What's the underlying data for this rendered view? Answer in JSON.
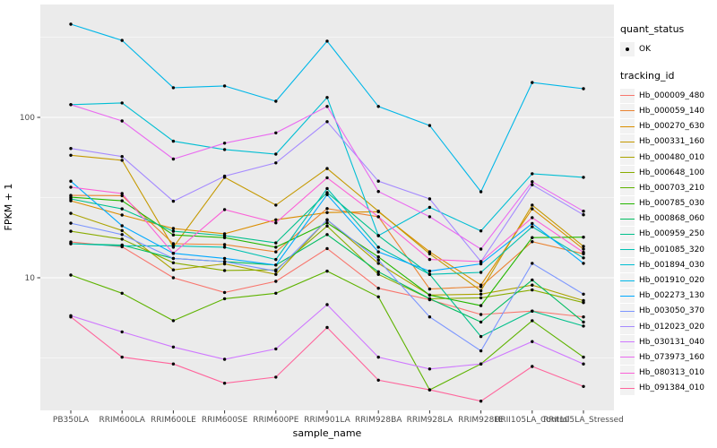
{
  "chart_data": {
    "type": "line",
    "title": "",
    "xlabel": "sample_name",
    "ylabel": "FPKM + 1",
    "yscale": "log10",
    "grid": true,
    "legend_position": "right",
    "panel_bg": "#EBEBEB",
    "grid_color": "#FFFFFF",
    "point_color": "#000000",
    "axis_text_color": "#4D4D4D",
    "yticks": [
      10,
      100
    ],
    "ytick_labels": [
      "10",
      "100"
    ],
    "minor_gridlines": [
      3.1623,
      31.623,
      316.23
    ],
    "categories": [
      "PB350LA",
      "RRIM600LA",
      "RRIM600LE",
      "RRIM600SE",
      "RRIM600PE",
      "RRIM901LA",
      "RRIM928BA",
      "RRIM928LA",
      "RRIM928LE",
      "RRII105LA_Control",
      "RRII105LA_Stressed"
    ],
    "series": [
      {
        "name": "Hb_000009_480",
        "color": "#F8766D",
        "values": [
          16.7,
          15.6,
          10.0,
          8.1,
          9.5,
          15.2,
          8.6,
          7.3,
          5.9,
          6.2,
          5.7
        ]
      },
      {
        "name": "Hb_000059_140",
        "color": "#EA8331",
        "values": [
          32.6,
          32.5,
          16.3,
          16.1,
          14.5,
          27.0,
          24.0,
          8.5,
          8.8,
          16.8,
          14.1
        ]
      },
      {
        "name": "Hb_000270_630",
        "color": "#DB8E00",
        "values": [
          30.2,
          24.6,
          20.3,
          18.8,
          23.0,
          25.5,
          25.8,
          14.5,
          9.0,
          26.9,
          15.1
        ]
      },
      {
        "name": "Hb_000331_160",
        "color": "#C59900",
        "values": [
          58.0,
          54.0,
          15.5,
          42.3,
          28.4,
          48.0,
          26.0,
          14.1,
          8.3,
          28.4,
          15.7
        ]
      },
      {
        "name": "Hb_000480_010",
        "color": "#ABA300",
        "values": [
          25.2,
          19.7,
          11.2,
          12.2,
          10.5,
          23.0,
          12.3,
          7.8,
          7.9,
          9.0,
          7.2
        ]
      },
      {
        "name": "Hb_000648_100",
        "color": "#89AC00",
        "values": [
          19.5,
          17.4,
          12.4,
          11.1,
          11.2,
          21.0,
          10.5,
          7.4,
          7.5,
          8.4,
          7.0
        ]
      },
      {
        "name": "Hb_000703_210",
        "color": "#5EB300",
        "values": [
          10.4,
          8.0,
          5.4,
          7.4,
          8.0,
          11.0,
          7.6,
          2.0,
          2.9,
          5.4,
          3.2
        ]
      },
      {
        "name": "Hb_000785_030",
        "color": "#24B700",
        "values": [
          31.8,
          30.2,
          18.5,
          17.8,
          15.5,
          22.0,
          13.5,
          7.8,
          6.7,
          17.8,
          17.9
        ]
      },
      {
        "name": "Hb_000868_060",
        "color": "#00BD61",
        "values": [
          16.3,
          16.0,
          13.2,
          12.6,
          12.0,
          18.6,
          10.9,
          7.4,
          5.3,
          9.7,
          5.3
        ]
      },
      {
        "name": "Hb_000959_250",
        "color": "#00C08B",
        "values": [
          31.0,
          26.9,
          19.5,
          18.3,
          16.5,
          34.0,
          18.3,
          10.5,
          4.3,
          6.2,
          5.0
        ]
      },
      {
        "name": "Hb_001085_320",
        "color": "#00C1B2",
        "values": [
          16.3,
          15.8,
          15.8,
          15.5,
          13.0,
          36.0,
          15.5,
          10.5,
          10.8,
          20.8,
          13.3
        ]
      },
      {
        "name": "Hb_001894_030",
        "color": "#00BED3",
        "values": [
          120,
          123,
          71,
          63,
          59,
          133,
          18.3,
          27.5,
          19.6,
          44.5,
          42.3
        ]
      },
      {
        "name": "Hb_001910_020",
        "color": "#00B7E8",
        "values": [
          381,
          302,
          153,
          157,
          126,
          299,
          117,
          89,
          34.4,
          165,
          151
        ]
      },
      {
        "name": "Hb_002273_130",
        "color": "#00A9FF",
        "values": [
          40.0,
          21.1,
          14.2,
          13.2,
          12.0,
          33.0,
          14.5,
          11.0,
          12.2,
          21.8,
          12.3
        ]
      },
      {
        "name": "Hb_003050_370",
        "color": "#7C96FF",
        "values": [
          21.9,
          18.6,
          13.2,
          12.6,
          11.0,
          23.0,
          12.9,
          5.7,
          3.5,
          12.3,
          7.9
        ]
      },
      {
        "name": "Hb_012023_020",
        "color": "#A58AFF",
        "values": [
          64,
          57,
          30,
          43,
          52,
          94,
          40,
          31,
          12.6,
          38,
          24.7
        ]
      },
      {
        "name": "Hb_030131_040",
        "color": "#CF78FF",
        "values": [
          5.8,
          4.6,
          3.7,
          3.1,
          3.6,
          6.8,
          3.2,
          2.7,
          2.9,
          4.0,
          2.9
        ]
      },
      {
        "name": "Hb_073973_160",
        "color": "#EA6BF0",
        "values": [
          120,
          95,
          55,
          69,
          80,
          117,
          34.5,
          24,
          15.1,
          39.7,
          26
        ]
      },
      {
        "name": "Hb_080313_010",
        "color": "#FB61D7",
        "values": [
          36.7,
          33.5,
          14.2,
          26.6,
          22.0,
          42.0,
          24.0,
          13.0,
          12.6,
          23.7,
          14.4
        ]
      },
      {
        "name": "Hb_091384_010",
        "color": "#FF659C",
        "values": [
          5.7,
          3.2,
          2.9,
          2.2,
          2.4,
          4.9,
          2.3,
          2.0,
          1.7,
          2.8,
          2.1
        ]
      }
    ],
    "legend": {
      "quant_title": "quant_status",
      "quant_items": [
        {
          "label": "OK",
          "symbol": "point"
        }
      ],
      "tracking_title": "tracking_id"
    }
  }
}
